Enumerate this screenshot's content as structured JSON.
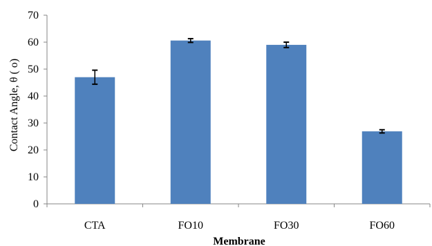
{
  "chart_data": {
    "type": "bar",
    "title": "",
    "xlabel": "Membrane",
    "ylabel": "Contact Angle, θ ( o)",
    "categories": [
      "CTA",
      "FO10",
      "FO30",
      "FO60"
    ],
    "values": [
      47,
      60.6,
      59,
      26.9
    ],
    "error": [
      2.6,
      0.7,
      1.0,
      0.6
    ],
    "ylim": [
      0,
      70
    ],
    "yticks": [
      "0",
      "10",
      "20",
      "30",
      "40",
      "50",
      "60",
      "70"
    ],
    "grid": false,
    "legend": "none",
    "bar_color": "#4F81BD"
  }
}
